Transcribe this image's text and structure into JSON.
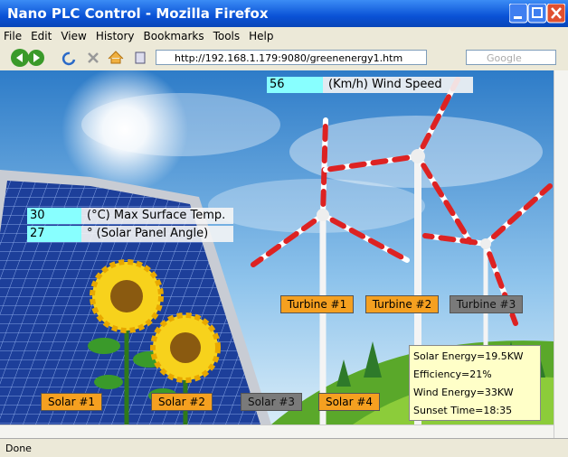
{
  "window": {
    "title": "Nano PLC Control - Mozilla Firefox"
  },
  "menu": [
    "File",
    "Edit",
    "View",
    "History",
    "Bookmarks",
    "Tools",
    "Help"
  ],
  "toolbar": {
    "url": "http://192.168.1.179:9080/greenenergy1.htm",
    "search": "Google"
  },
  "wind": {
    "value": 56,
    "label": "(Km/h) Wind Speed"
  },
  "temperature": {
    "value": 30,
    "label": "(°C) Max Surface Temp."
  },
  "angle": {
    "value": 27,
    "label": "° (Solar Panel Angle)"
  },
  "turbines": [
    {
      "label": "Turbine #1",
      "active": true
    },
    {
      "label": "Turbine #2",
      "active": true
    },
    {
      "label": "Turbine #3",
      "active": false
    }
  ],
  "solar_panels": [
    {
      "label": "Solar #1",
      "active": true
    },
    {
      "label": "Solar #2",
      "active": true
    },
    {
      "label": "Solar #3",
      "active": false
    },
    {
      "label": "Solar #4",
      "active": true
    }
  ],
  "info": [
    "Solar Energy=19.5KW",
    "Efficiency=21%",
    "Wind Energy=33KW",
    "Sunset Time=18:35"
  ],
  "status": "Done"
}
